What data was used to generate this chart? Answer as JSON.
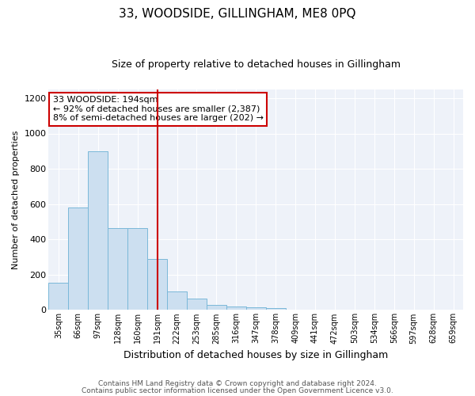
{
  "title": "33, WOODSIDE, GILLINGHAM, ME8 0PQ",
  "subtitle": "Size of property relative to detached houses in Gillingham",
  "xlabel": "Distribution of detached houses by size in Gillingham",
  "ylabel": "Number of detached properties",
  "bar_color": "#ccdff0",
  "bar_edge_color": "#7ab8d9",
  "background_color": "#eef2f9",
  "annotation_box_color": "#ffffff",
  "annotation_box_edge": "#cc0000",
  "vline_color": "#cc0000",
  "categories": [
    "35sqm",
    "66sqm",
    "97sqm",
    "128sqm",
    "160sqm",
    "191sqm",
    "222sqm",
    "253sqm",
    "285sqm",
    "316sqm",
    "347sqm",
    "378sqm",
    "409sqm",
    "441sqm",
    "472sqm",
    "503sqm",
    "534sqm",
    "566sqm",
    "597sqm",
    "628sqm",
    "659sqm"
  ],
  "values": [
    155,
    580,
    900,
    465,
    465,
    290,
    105,
    65,
    30,
    20,
    15,
    10,
    0,
    0,
    0,
    0,
    0,
    0,
    0,
    0,
    0
  ],
  "vline_x_index": 5,
  "ylim": [
    0,
    1250
  ],
  "yticks": [
    0,
    200,
    400,
    600,
    800,
    1000,
    1200
  ],
  "annotation_text": "33 WOODSIDE: 194sqm\n← 92% of detached houses are smaller (2,387)\n8% of semi-detached houses are larger (202) →",
  "footer_line1": "Contains HM Land Registry data © Crown copyright and database right 2024.",
  "footer_line2": "Contains public sector information licensed under the Open Government Licence v3.0.",
  "title_fontsize": 11,
  "subtitle_fontsize": 9,
  "ylabel_fontsize": 8,
  "xlabel_fontsize": 9,
  "tick_fontsize": 7,
  "annotation_fontsize": 8,
  "footer_fontsize": 6.5
}
